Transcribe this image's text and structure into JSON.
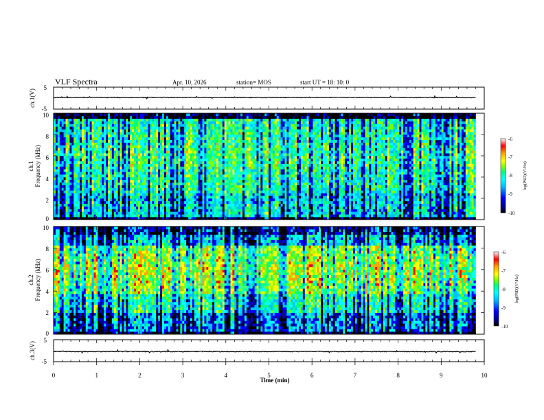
{
  "header": {
    "title": "VLF Spectra",
    "date": "Apr. 10, 2026",
    "station": "station= MOS",
    "start_ut": "start  UT =   18: 10: 0"
  },
  "colors": {
    "colormap": [
      "#000000",
      "#00008b",
      "#0000ff",
      "#00bfff",
      "#00ffff",
      "#00ff7f",
      "#7fff00",
      "#ffff00",
      "#ffa500",
      "#ff0000",
      "#ffffff"
    ],
    "background": "#ffffff",
    "axis": "#000000"
  },
  "chart_data": [
    {
      "type": "line",
      "panel": "ch1-waveform",
      "ylabel": "ch.1(V)",
      "ylim": [
        -5,
        5
      ],
      "yticks": [
        "5",
        "-5"
      ],
      "xlim": [
        0,
        10
      ],
      "series_level": 0.3
    },
    {
      "type": "heatmap",
      "panel": "ch1-spectrogram",
      "ylabel_line1": "ch.1",
      "ylabel_line2": "Frequency (kHz)",
      "ylim": [
        0,
        10
      ],
      "yticks": [
        "0",
        "2",
        "4",
        "6",
        "8",
        "10"
      ],
      "xlim": [
        0,
        10
      ],
      "data_end_min": 9.8,
      "colorbar": {
        "label": "log(PSD)(V²/Hz)",
        "range": [
          -10,
          -6
        ],
        "ticks": [
          "-6",
          "-7",
          "-8",
          "-9",
          "-10"
        ]
      }
    },
    {
      "type": "heatmap",
      "panel": "ch2-spectrogram",
      "ylabel_line1": "ch.2",
      "ylabel_line2": "Frequency (kHz)",
      "ylim": [
        0,
        10
      ],
      "yticks": [
        "0",
        "2",
        "4",
        "6",
        "8",
        "10"
      ],
      "xlim": [
        0,
        10
      ],
      "data_end_min": 9.8,
      "colorbar": {
        "label": "log(PSD)(V²/Hz)",
        "range": [
          -10,
          -6
        ],
        "ticks": [
          "-6",
          "-7",
          "-8",
          "-9",
          "-10"
        ]
      }
    },
    {
      "type": "line",
      "panel": "ch3-waveform",
      "ylabel": "ch.3(V)",
      "ylim": [
        -5,
        5
      ],
      "yticks": [
        "5",
        "-5"
      ],
      "xlim": [
        0,
        10
      ],
      "xlabel": "Time  (min)",
      "xticks": [
        "0",
        "1",
        "2",
        "3",
        "4",
        "5",
        "6",
        "7",
        "8",
        "9",
        "10"
      ],
      "series_level": -0.4
    }
  ]
}
